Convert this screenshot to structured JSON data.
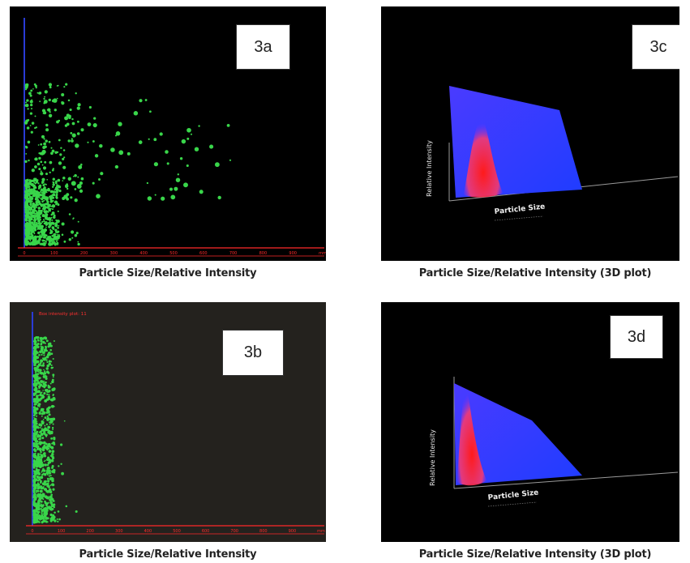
{
  "figure": {
    "panels": [
      {
        "id": "3a",
        "caption": "Particle Size/Relative Intensity"
      },
      {
        "id": "3b",
        "caption": "Particle Size/Relative Intensity"
      },
      {
        "id": "3c",
        "caption": "Particle Size/Relative Intensity (3D plot)"
      },
      {
        "id": "3d",
        "caption": "Particle Size/Relative Intensity (3D plot)"
      }
    ],
    "axis_text_3d": {
      "c": {
        "ylabel": "Relative Intensity",
        "xlabel": "Particle Size"
      },
      "d": {
        "ylabel": "Relative Intensity",
        "xlabel": "Particle Size"
      }
    },
    "overlay_3b": "Box intensity plot: 11"
  },
  "chart_data": [
    {
      "type": "scatter",
      "panel": "3a",
      "xlabel": "",
      "ylabel": "",
      "x_ticks": [
        "0",
        "100",
        "200",
        "300",
        "400",
        "500",
        "600",
        "700",
        "800",
        "900",
        "mm"
      ],
      "colors": {
        "background": "#000000",
        "points": "#39d64a",
        "axis": "#ff2a2a",
        "yaxis": "#2a3bd6"
      },
      "clusters": [
        {
          "x_range": [
            0,
            110
          ],
          "y_range": [
            0,
            170
          ],
          "count": 650,
          "size": [
            0.8,
            2
          ]
        },
        {
          "x_range": [
            0,
            180
          ],
          "y_range": [
            0,
            420
          ],
          "count": 260,
          "size": [
            0.8,
            2.2
          ]
        },
        {
          "x_range": [
            60,
            720
          ],
          "y_range": [
            120,
            380
          ],
          "count": 90,
          "size": [
            1,
            3
          ]
        }
      ]
    },
    {
      "type": "scatter",
      "panel": "3b",
      "xlabel": "",
      "ylabel": "",
      "x_ticks": [
        "0",
        "100",
        "200",
        "300",
        "400",
        "500",
        "600",
        "700",
        "800",
        "900",
        "mm"
      ],
      "colors": {
        "background": "#24221e",
        "points": "#39d64a",
        "axis": "#ff2a2a",
        "yaxis": "#2a3bd6"
      },
      "clusters": [
        {
          "x_range": [
            0,
            70
          ],
          "y_range": [
            0,
            520
          ],
          "count": 900,
          "size": [
            0.8,
            2
          ]
        },
        {
          "x_range": [
            0,
            160
          ],
          "y_range": [
            0,
            300
          ],
          "count": 60,
          "size": [
            0.8,
            2
          ]
        }
      ]
    },
    {
      "type": "heatmap",
      "panel": "3c",
      "xlabel": "Particle Size",
      "ylabel": "Relative Intensity",
      "colors": {
        "background": "#000000",
        "surface": "#1f3cff",
        "peak": "#ff1a1a"
      }
    },
    {
      "type": "heatmap",
      "panel": "3d",
      "xlabel": "Particle Size",
      "ylabel": "Relative Intensity",
      "colors": {
        "background": "#000000",
        "surface": "#1f3cff",
        "peak": "#ff1a1a"
      }
    }
  ]
}
